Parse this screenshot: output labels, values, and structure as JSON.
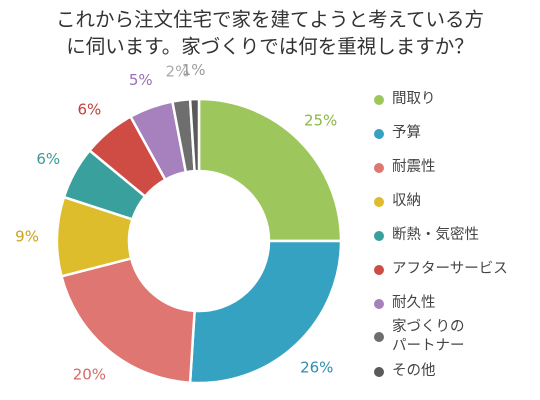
{
  "title_line1": "これから注文住宅で家を建てようと考えている方",
  "title_line2": "に伺います。家づくりでは何を重視しますか？",
  "chart_data": {
    "type": "pie",
    "subtype": "donut",
    "categories": [
      "間取り",
      "予算",
      "耐震性",
      "収納",
      "断熱・気密性",
      "アフターサービス",
      "耐久性",
      "家づくりのパートナー",
      "その他"
    ],
    "values": [
      25,
      26,
      20,
      9,
      6,
      6,
      5,
      2,
      1
    ],
    "data_labels": [
      "25%",
      "26%",
      "20%",
      "9%",
      "6%",
      "6%",
      "5%",
      "2%",
      "1%"
    ],
    "colors": [
      "#9dc65c",
      "#35a2c2",
      "#df7672",
      "#ddbd2b",
      "#3aa09e",
      "#cf4c45",
      "#a781bd",
      "#6e6e6e",
      "#5a5a5a"
    ],
    "label_colors": [
      "#8ab845",
      "#2e8fb0",
      "#d46a66",
      "#c9a41b",
      "#3a9a98",
      "#c2403a",
      "#9a70b4",
      "#aaaaaa",
      "#9a9a9a"
    ],
    "legend_placement": "right"
  },
  "legend": [
    {
      "label": "間取り",
      "color": "#9dc65c"
    },
    {
      "label": "予算",
      "color": "#35a2c2"
    },
    {
      "label": "耐震性",
      "color": "#df7672"
    },
    {
      "label": "収納",
      "color": "#ddbd2b"
    },
    {
      "label": "断熱・気密性",
      "color": "#3aa09e"
    },
    {
      "label": "アフターサービス",
      "color": "#cf4c45"
    },
    {
      "label": "耐久性",
      "color": "#a781bd"
    },
    {
      "label": "家づくりのパートナー",
      "line1": "家づくりの",
      "line2": "パートナー",
      "color": "#6e6e6e"
    },
    {
      "label": "その他",
      "color": "#5a5a5a"
    }
  ]
}
